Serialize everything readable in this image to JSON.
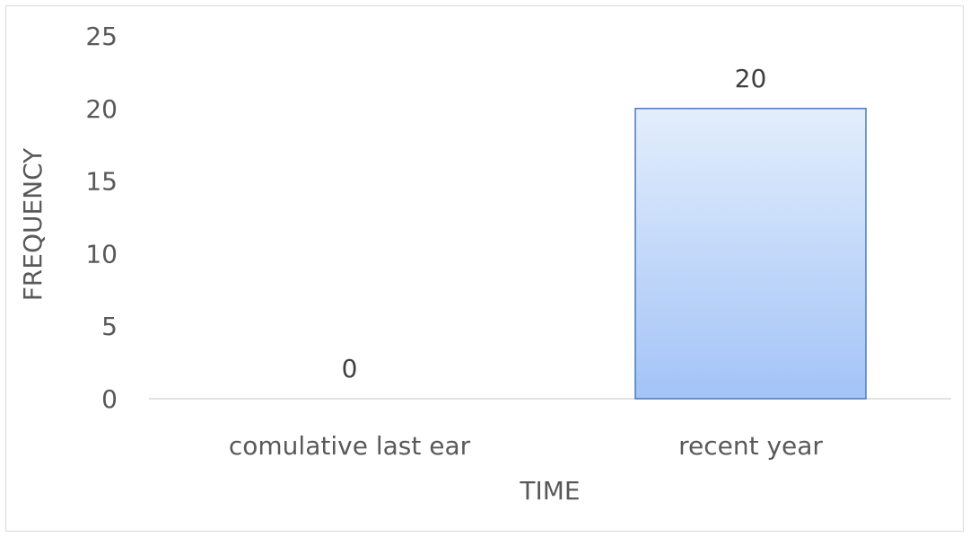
{
  "chart_data": {
    "type": "bar",
    "categories": [
      "comulative last ear",
      "recent year"
    ],
    "values": [
      0,
      20
    ],
    "data_labels": [
      "0",
      "20"
    ],
    "xlabel": "TIME",
    "ylabel": "FREQUENCY",
    "ylim": [
      0,
      25
    ],
    "yticks": [
      0,
      5,
      10,
      15,
      20,
      25
    ],
    "ytick_labels": [
      "0",
      "5",
      "10",
      "15",
      "20",
      "25"
    ],
    "grid": false,
    "legend": false,
    "colors": {
      "bar_fill_top": "#e3eefc",
      "bar_fill_bottom": "#a3c3f7",
      "bar_stroke": "#4a7ab7",
      "axis_line": "#d9d9d9"
    }
  }
}
